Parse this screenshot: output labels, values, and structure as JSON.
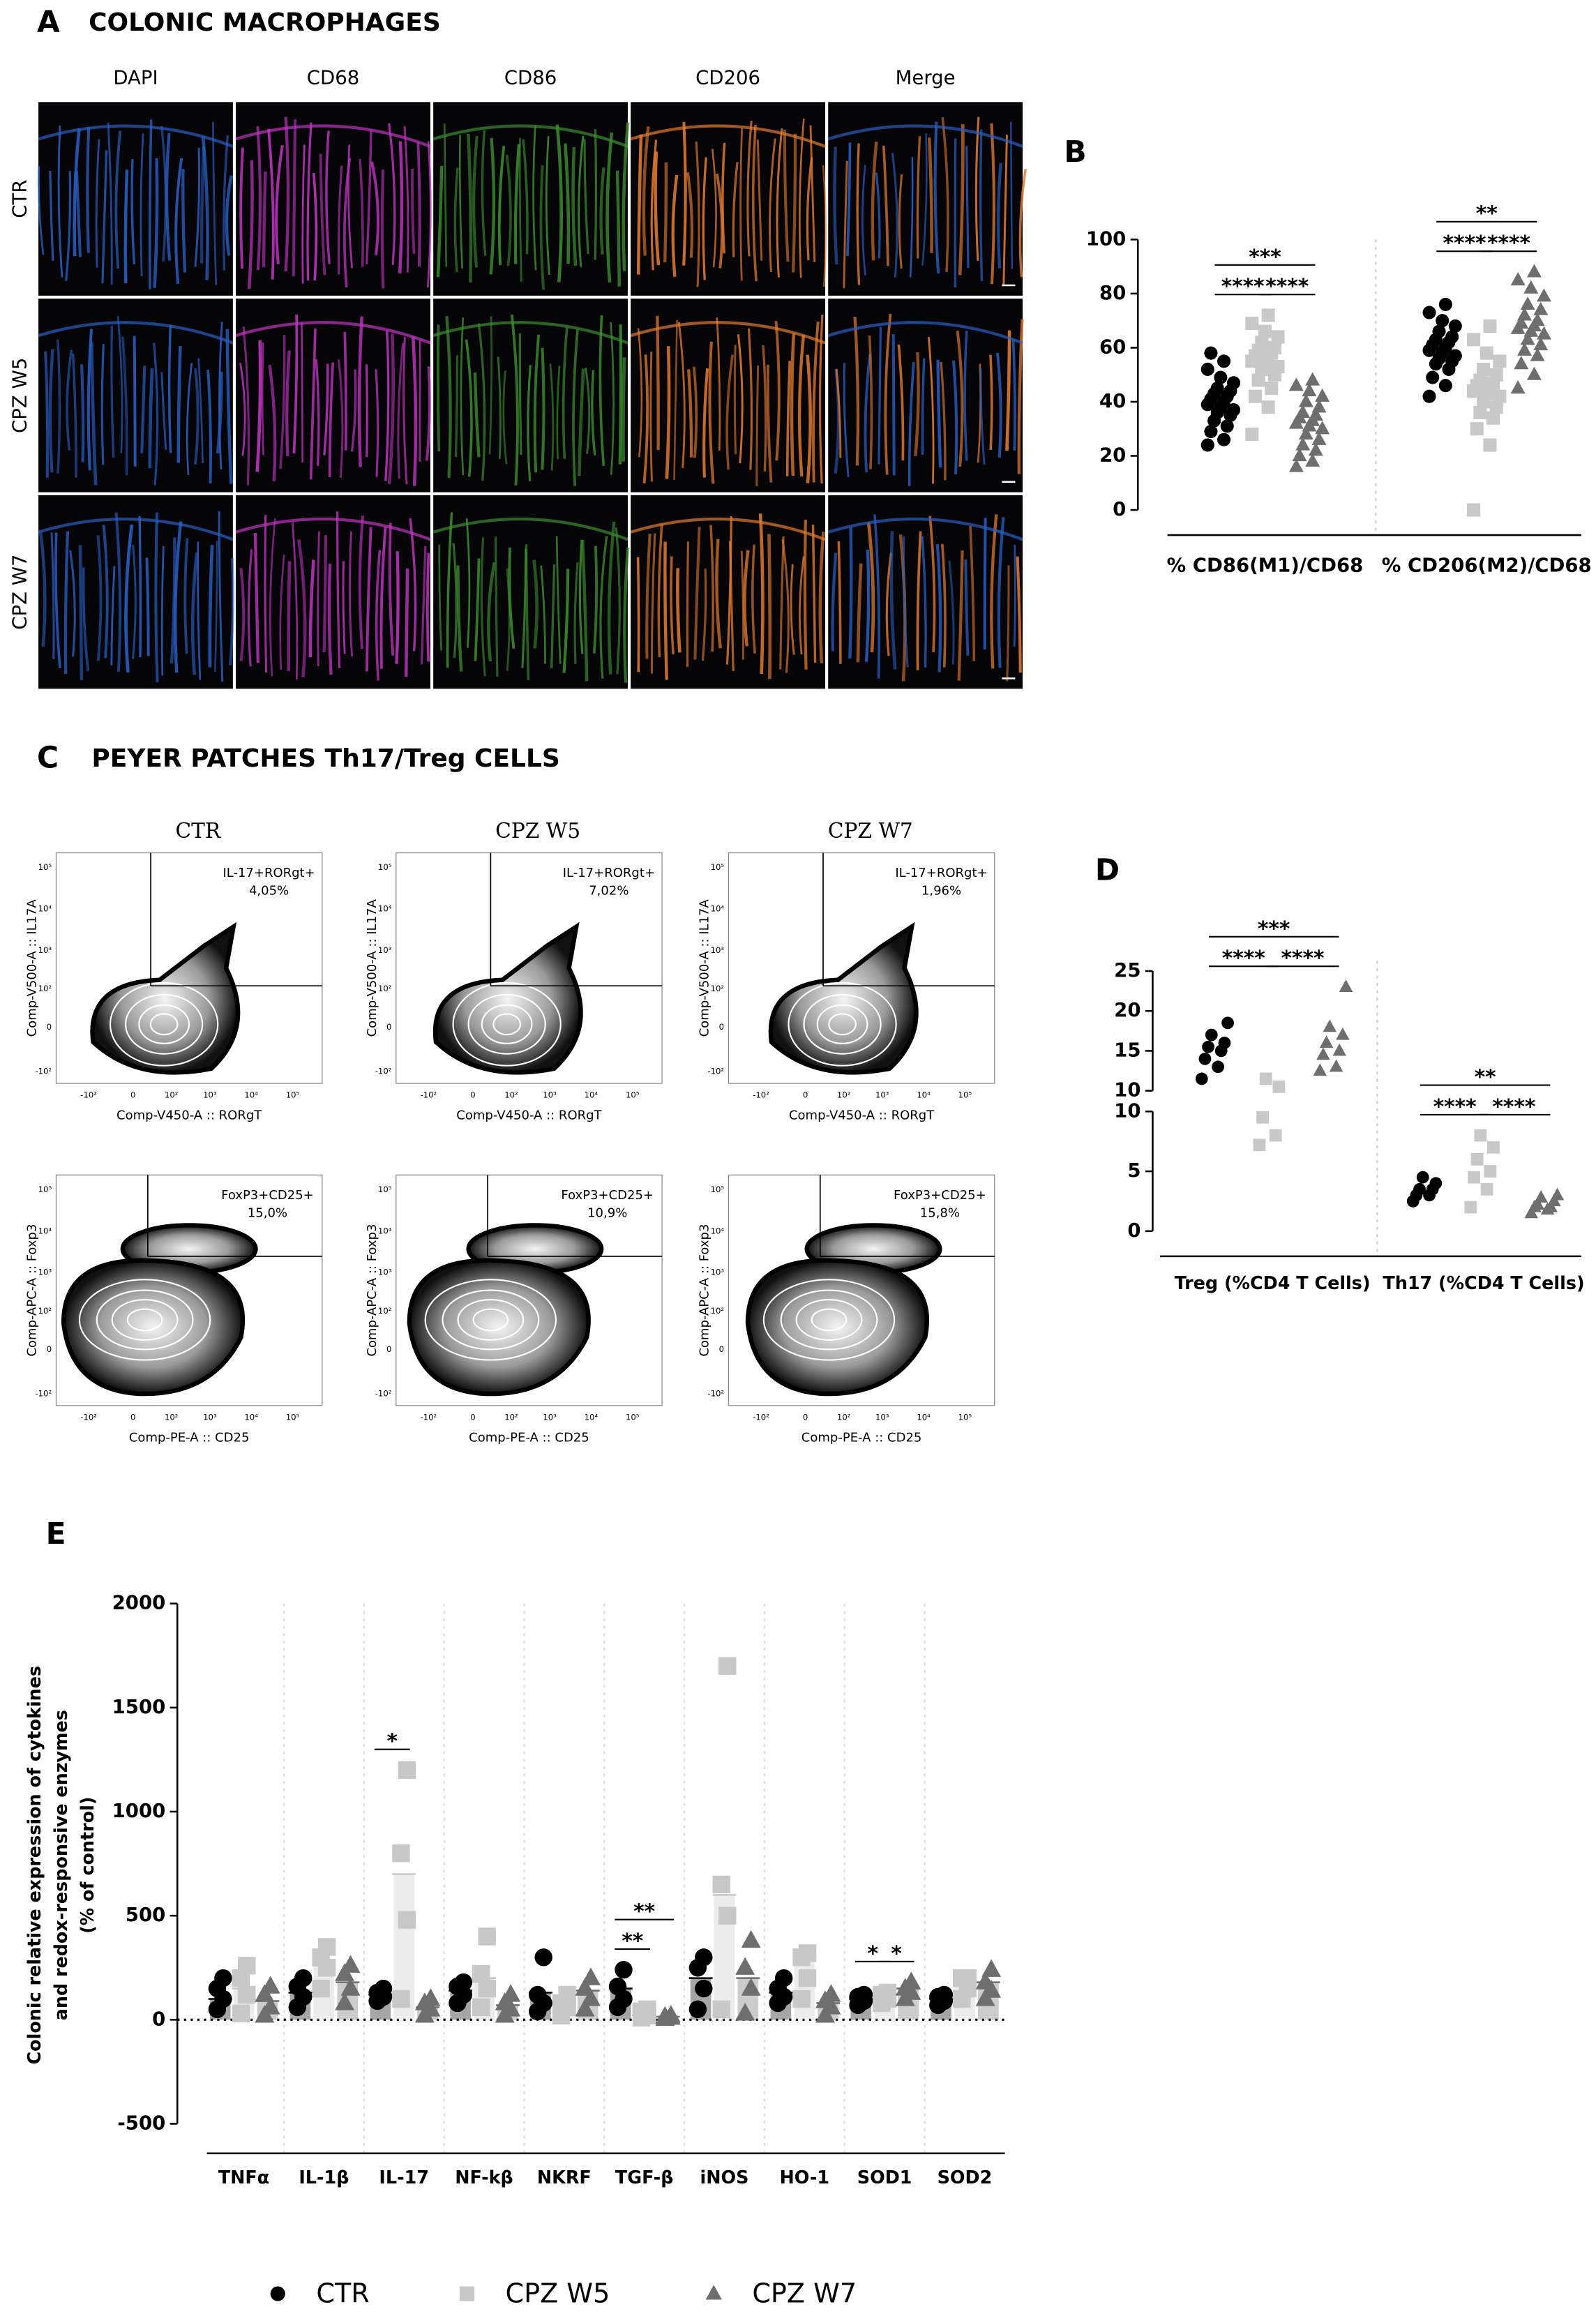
{
  "panel_a": {
    "label": "A",
    "title": "COLONIC MACROPHAGES",
    "channels": [
      {
        "name": "DAPI",
        "color": "#2a5fc4"
      },
      {
        "name": "CD68",
        "color": "#c235c2"
      },
      {
        "name": "CD86",
        "color": "#3d8f2f"
      },
      {
        "name": "CD206",
        "color": "#e27a30"
      },
      {
        "name": "Merge",
        "color": "#1f4e79"
      }
    ],
    "rows": [
      "CTR",
      "CPZ W5",
      "CPZ W7"
    ]
  },
  "panel_c": {
    "label": "C",
    "title": "PEYER PATCHES Th17/Treg CELLS",
    "columns": [
      "CTR",
      "CPZ W5",
      "CPZ W7"
    ],
    "plots": [
      {
        "gate": "IL-17+RORgt+",
        "percents": [
          "4,05%",
          "7,02%",
          "1,96%"
        ],
        "ylabel": "Comp-V500-A :: IL17A",
        "xlabel": "Comp-V450-A :: RORgT"
      },
      {
        "gate": "FoxP3+CD25+",
        "percents": [
          "15,0%",
          "10,9%",
          "15,8%"
        ],
        "ylabel": "Comp-APC-A :: Foxp3",
        "xlabel": "Comp-PE-A :: CD25"
      }
    ],
    "axis_ticks": [
      "-10²",
      "0",
      "10²",
      "10³",
      "10⁴",
      "10⁵"
    ]
  },
  "chart_data": [
    {
      "type": "dot",
      "label": "B",
      "categories": [
        "% CD86(M1)/CD68",
        "% CD206(M2)/CD68"
      ],
      "ylim": [
        0,
        100
      ],
      "yticks": [
        0,
        20,
        40,
        60,
        80,
        100
      ],
      "series": [
        {
          "color": "#000000",
          "marker": "circle",
          "points": [
            [
              24,
              26,
              29,
              31,
              33,
              35,
              36,
              37,
              38,
              39,
              40,
              41,
              42,
              43,
              44,
              45,
              47,
              49,
              52,
              55,
              58
            ],
            [
              42,
              46,
              49,
              52,
              54,
              55,
              56,
              57,
              58,
              59,
              60,
              61,
              62,
              63,
              64,
              66,
              68,
              70,
              73,
              76
            ]
          ]
        },
        {
          "color": "#c8c8c8",
          "marker": "square",
          "points": [
            [
              28,
              38,
              42,
              45,
              48,
              50,
              52,
              53,
              54,
              55,
              56,
              57,
              58,
              59,
              60,
              62,
              64,
              66,
              69,
              72
            ],
            [
              0,
              24,
              30,
              34,
              36,
              38,
              40,
              42,
              43,
              44,
              45,
              46,
              47,
              48,
              50,
              52,
              55,
              58,
              63,
              68
            ]
          ]
        },
        {
          "color": "#6e6e6e",
          "marker": "triangle",
          "points": [
            [
              16,
              18,
              20,
              22,
              24,
              26,
              28,
              30,
              31,
              32,
              33,
              34,
              35,
              36,
              38,
              40,
              42,
              44,
              46,
              48
            ],
            [
              45,
              50,
              54,
              57,
              59,
              61,
              63,
              65,
              66,
              67,
              68,
              69,
              70,
              72,
              74,
              76,
              79,
              82,
              85,
              88
            ]
          ]
        }
      ],
      "significance": [
        {
          "text": "***",
          "category": 0,
          "from": 0,
          "to": 2
        },
        {
          "text": "****",
          "category": 0,
          "from": 0,
          "to": 1
        },
        {
          "text": "****",
          "category": 0,
          "from": 1,
          "to": 2
        },
        {
          "text": "**",
          "category": 1,
          "from": 0,
          "to": 2
        },
        {
          "text": "****",
          "category": 1,
          "from": 0,
          "to": 1
        },
        {
          "text": "****",
          "category": 1,
          "from": 1,
          "to": 2
        }
      ]
    },
    {
      "type": "dot_broken",
      "label": "D",
      "categories": [
        "Treg (%CD4 T Cells)",
        "Th17 (%CD4 T Cells)"
      ],
      "segments": [
        {
          "ylim": [
            0,
            10
          ],
          "yticks": [
            0,
            5,
            10
          ]
        },
        {
          "ylim": [
            10,
            25
          ],
          "yticks": [
            10,
            15,
            20,
            25
          ]
        }
      ],
      "series": [
        {
          "color": "#000000",
          "marker": "circle",
          "points": [
            [
              11.5,
              13,
              14,
              15,
              15.5,
              16,
              17,
              18.5
            ],
            [
              2.5,
              3,
              3,
              3.5,
              3.5,
              4,
              4.5
            ]
          ]
        },
        {
          "color": "#c8c8c8",
          "marker": "square",
          "points": [
            [
              7.2,
              8,
              9.5,
              10.5,
              11.5
            ],
            [
              2,
              3.5,
              4.5,
              5,
              6,
              7,
              8
            ]
          ]
        },
        {
          "color": "#6e6e6e",
          "marker": "triangle",
          "points": [
            [
              12.5,
              13,
              14.5,
              15,
              16,
              17,
              18,
              23
            ],
            [
              1.5,
              1.8,
              2,
              2,
              2.2,
              2.5,
              2.8,
              3
            ]
          ]
        }
      ],
      "significance": [
        {
          "text": "***",
          "category": 0,
          "from": 0,
          "to": 2
        },
        {
          "text": "****",
          "category": 0,
          "from": 0,
          "to": 1
        },
        {
          "text": "****",
          "category": 0,
          "from": 1,
          "to": 2
        },
        {
          "text": "**",
          "category": 1,
          "from": 0,
          "to": 2
        },
        {
          "text": "****",
          "category": 1,
          "from": 0,
          "to": 1
        },
        {
          "text": "****",
          "category": 1,
          "from": 1,
          "to": 2
        }
      ]
    },
    {
      "type": "bar_dot",
      "label": "E",
      "categories": [
        "TNFα",
        "IL-1β",
        "IL-17",
        "NF-kβ",
        "NKRF",
        "TGF-β",
        "iNOS",
        "HO-1",
        "SOD1",
        "SOD2"
      ],
      "ylabel": [
        "Colonic relative expression of cytokines",
        "and redox-responsive enzymes",
        "(% of control)"
      ],
      "ylim": [
        -500,
        2000
      ],
      "yticks": [
        -500,
        0,
        500,
        1000,
        1500,
        2000
      ],
      "legend": "bottom",
      "series": [
        {
          "name": "CTR",
          "color": "#000000",
          "marker": "circle",
          "values": [
            100,
            130,
            120,
            140,
            130,
            150,
            200,
            130,
            100,
            100
          ],
          "points": [
            [
              50,
              100,
              150,
              200
            ],
            [
              60,
              110,
              160,
              200
            ],
            [
              90,
              110,
              130,
              150
            ],
            [
              80,
              120,
              160,
              180
            ],
            [
              40,
              80,
              120,
              300
            ],
            [
              60,
              100,
              160,
              240
            ],
            [
              50,
              150,
              250,
              300
            ],
            [
              80,
              110,
              150,
              200
            ],
            [
              70,
              90,
              110,
              120
            ],
            [
              70,
              90,
              110,
              120
            ]
          ]
        },
        {
          "name": "CPZ W5",
          "color": "#c8c8c8",
          "marker": "square",
          "values": [
            150,
            260,
            700,
            200,
            80,
            30,
            600,
            300,
            120,
            190
          ],
          "points": [
            [
              30,
              120,
              200,
              260
            ],
            [
              150,
              250,
              300,
              350
            ],
            [
              100,
              480,
              800,
              1200
            ],
            [
              60,
              150,
              220,
              400
            ],
            [
              20,
              60,
              80,
              120
            ],
            [
              10,
              20,
              40,
              50
            ],
            [
              50,
              500,
              650,
              1700
            ],
            [
              100,
              200,
              300,
              320
            ],
            [
              80,
              100,
              120,
              130
            ],
            [
              100,
              150,
              200,
              200
            ]
          ]
        },
        {
          "name": "CPZ W7",
          "color": "#6e6e6e",
          "marker": "triangle",
          "values": [
            90,
            180,
            60,
            70,
            140,
            15,
            200,
            80,
            150,
            180
          ],
          "points": [
            [
              20,
              60,
              120,
              160
            ],
            [
              80,
              150,
              220,
              260
            ],
            [
              20,
              50,
              80,
              100
            ],
            [
              20,
              50,
              80,
              120
            ],
            [
              50,
              100,
              150,
              200
            ],
            [
              5,
              10,
              15,
              20
            ],
            [
              30,
              150,
              250,
              380
            ],
            [
              20,
              60,
              90,
              120
            ],
            [
              100,
              130,
              150,
              180
            ],
            [
              100,
              140,
              180,
              240
            ]
          ]
        }
      ],
      "significance": [
        {
          "text": "*",
          "category": 2,
          "from": 0,
          "to": 1
        },
        {
          "text": "**",
          "category": 5,
          "from": 0,
          "to": 2
        },
        {
          "text": "**",
          "category": 5,
          "from": 0,
          "to": 1
        },
        {
          "text": "*",
          "category": 8,
          "from": 0,
          "to": 1
        },
        {
          "text": "*",
          "category": 8,
          "from": 1,
          "to": 2
        }
      ]
    }
  ]
}
